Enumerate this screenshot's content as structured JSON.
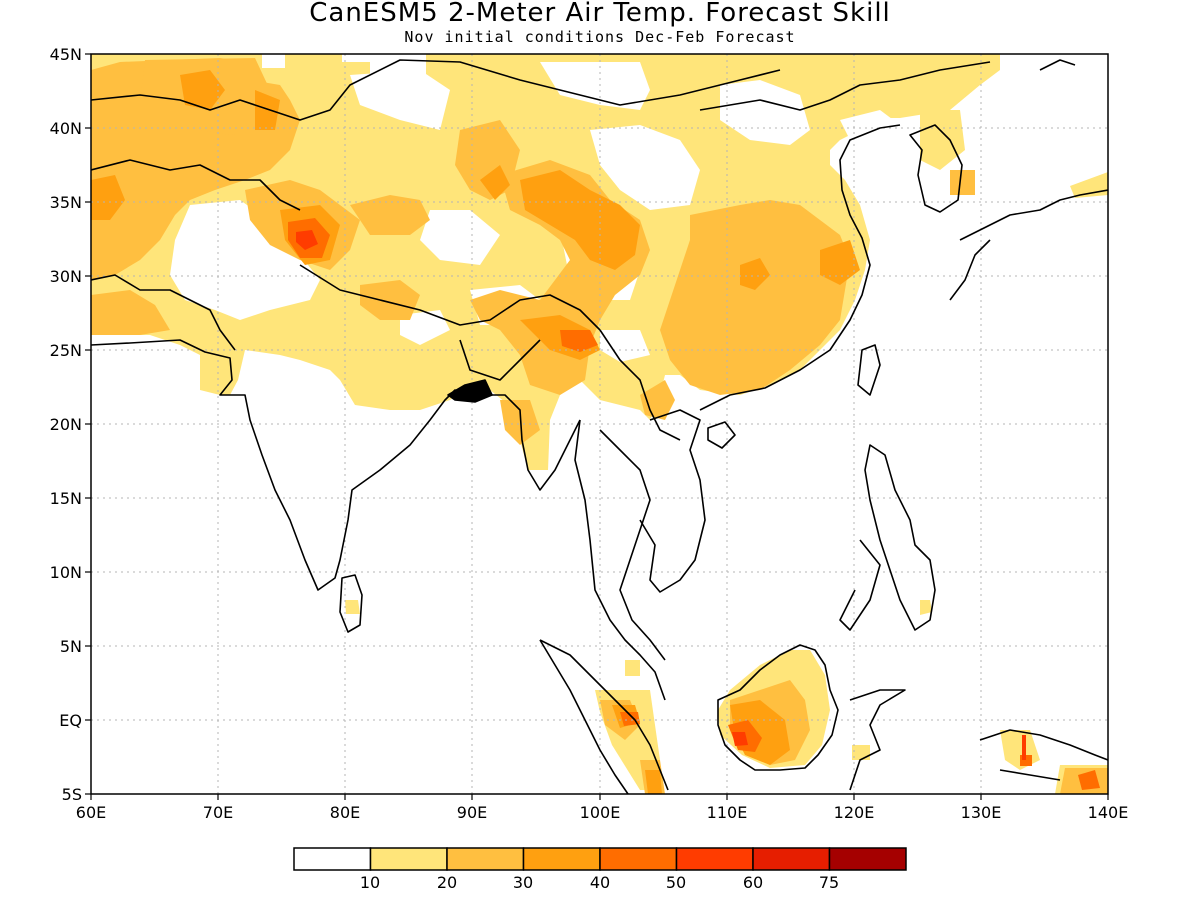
{
  "title": "CanESM5 2-Meter Air Temp. Forecast Skill",
  "subtitle": "Nov initial conditions  Dec-Feb Forecast",
  "map": {
    "lon_range": [
      60,
      140
    ],
    "lat_range": [
      -5,
      45
    ],
    "x_ticks": [
      "60E",
      "70E",
      "80E",
      "90E",
      "100E",
      "110E",
      "120E",
      "130E",
      "140E"
    ],
    "y_ticks": [
      "5S",
      "EQ",
      "5N",
      "10N",
      "15N",
      "20N",
      "25N",
      "30N",
      "35N",
      "40N",
      "45N"
    ],
    "gridlines": "dotted"
  },
  "colorbar": {
    "labels": [
      "10",
      "20",
      "30",
      "40",
      "50",
      "60",
      "75"
    ],
    "colors": [
      "#ffffff",
      "#ffe57a",
      "#ffbf40",
      "#ffa010",
      "#ff6d00",
      "#ff3c00",
      "#e61e00",
      "#a50000"
    ]
  }
}
